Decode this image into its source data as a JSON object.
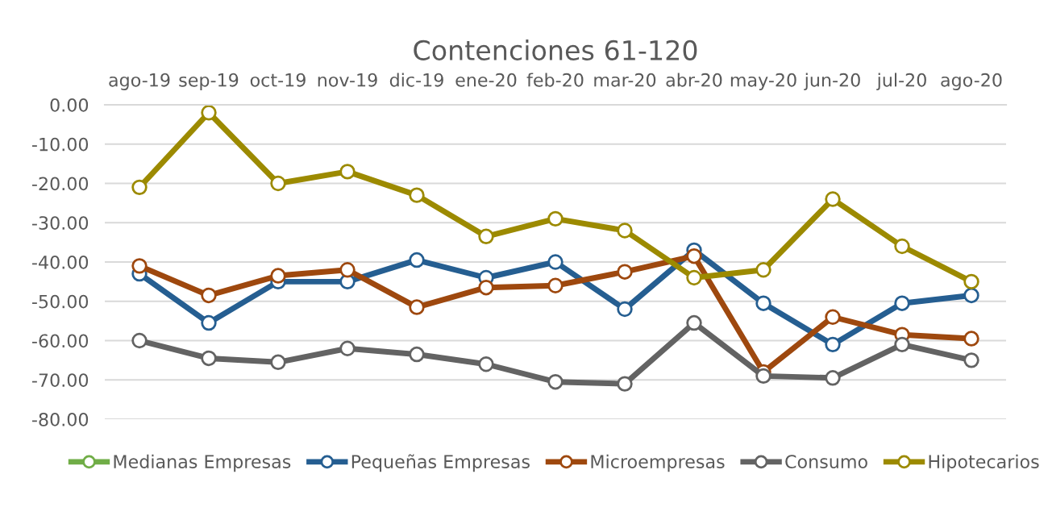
{
  "chart_data": {
    "type": "line",
    "title": "Contenciones 61-120",
    "categories": [
      "ago-19",
      "sep-19",
      "oct-19",
      "nov-19",
      "dic-19",
      "ene-20",
      "feb-20",
      "mar-20",
      "abr-20",
      "may-20",
      "jun-20",
      "jul-20",
      "ago-20"
    ],
    "series": [
      {
        "name": "Medianas Empresas",
        "color": "#70ad47",
        "values": [
          null,
          null,
          null,
          null,
          null,
          null,
          null,
          null,
          null,
          null,
          null,
          null,
          null
        ]
      },
      {
        "name": "Pequeñas Empresas",
        "color": "#255e91",
        "values": [
          -43,
          -55.5,
          -45,
          -45,
          -39.5,
          -44,
          -40,
          -52,
          -37,
          -50.5,
          -61,
          -50.5,
          -48.5
        ]
      },
      {
        "name": "Microempresas",
        "color": "#9e480e",
        "values": [
          -41,
          -48.5,
          -43.5,
          -42,
          -51.5,
          -46.5,
          -46,
          -42.5,
          -38.5,
          -68,
          -54,
          -58.5,
          -59.5
        ]
      },
      {
        "name": "Consumo",
        "color": "#636363",
        "values": [
          -60,
          -64.5,
          -65.5,
          -62,
          -63.5,
          -66,
          -70.5,
          -71,
          -55.5,
          -69,
          -69.5,
          -61,
          -65
        ]
      },
      {
        "name": "Hipotecarios",
        "color": "#9c8a00",
        "values": [
          -21,
          -2,
          -20,
          -17,
          -23,
          -33.5,
          -29,
          -32,
          -44,
          -42,
          -24,
          -36,
          -45
        ]
      }
    ],
    "ylim": [
      -80,
      0
    ],
    "yticks": [
      {
        "value": 0,
        "label": "0.00"
      },
      {
        "value": -10,
        "label": "-10.00"
      },
      {
        "value": -20,
        "label": "-20.00"
      },
      {
        "value": -30,
        "label": "-30.00"
      },
      {
        "value": -40,
        "label": "-40.00"
      },
      {
        "value": -50,
        "label": "-50.00"
      },
      {
        "value": -60,
        "label": "-60.00"
      },
      {
        "value": -70,
        "label": "-70.00"
      },
      {
        "value": -80,
        "label": "-80.00"
      }
    ],
    "grid": "y",
    "legend": "bottom",
    "marker": "circle",
    "line_style": "solid"
  }
}
